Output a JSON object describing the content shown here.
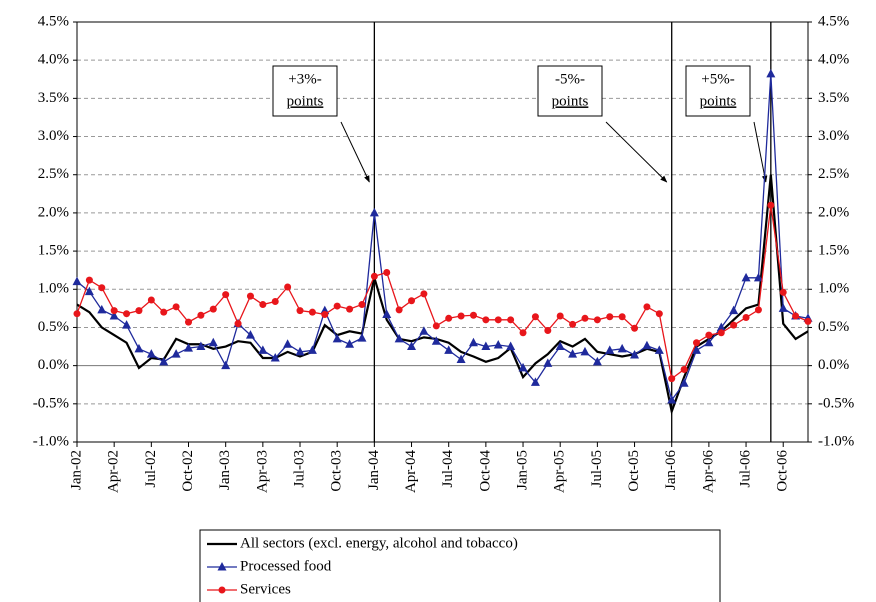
{
  "chart_data": {
    "type": "line",
    "categories": [
      "Jan-02",
      null,
      null,
      "Apr-02",
      null,
      null,
      "Jul-02",
      null,
      null,
      "Oct-02",
      null,
      null,
      "Jan-03",
      null,
      null,
      "Apr-03",
      null,
      null,
      "Jul-03",
      null,
      null,
      "Oct-03",
      null,
      null,
      "Jan-04",
      null,
      null,
      "Apr-04",
      null,
      null,
      "Jul-04",
      null,
      null,
      "Oct-04",
      null,
      null,
      "Jan-05",
      null,
      null,
      "Apr-05",
      null,
      null,
      "Jul-05",
      null,
      null,
      "Oct-05",
      null,
      null,
      "Jan-06",
      null,
      null,
      "Apr-06",
      null,
      null,
      "Jul-06",
      null,
      null,
      "Oct-06",
      null,
      null
    ],
    "series": [
      {
        "name": "All sectors (excl. energy, alcohol and tobacco)",
        "color": "#000000",
        "marker": null,
        "values": [
          0.8,
          0.7,
          0.5,
          0.4,
          0.3,
          -0.03,
          0.1,
          0.08,
          0.35,
          0.28,
          0.28,
          0.22,
          0.25,
          0.32,
          0.3,
          0.1,
          0.1,
          0.18,
          0.12,
          0.18,
          0.53,
          0.4,
          0.45,
          0.42,
          1.15,
          0.6,
          0.35,
          0.32,
          0.37,
          0.35,
          0.3,
          0.18,
          0.12,
          0.05,
          0.1,
          0.23,
          -0.15,
          0.03,
          0.15,
          0.32,
          0.25,
          0.35,
          0.18,
          0.15,
          0.12,
          0.15,
          0.22,
          0.18,
          -0.6,
          -0.15,
          0.25,
          0.35,
          0.45,
          0.6,
          0.75,
          0.8,
          2.5,
          0.55,
          0.35,
          0.45
        ]
      },
      {
        "name": "Processed food",
        "color": "#1f2a9c",
        "marker": "triangle",
        "values": [
          1.1,
          0.97,
          0.73,
          0.65,
          0.53,
          0.22,
          0.15,
          0.05,
          0.15,
          0.23,
          0.25,
          0.3,
          0.0,
          0.55,
          0.4,
          0.2,
          0.1,
          0.28,
          0.18,
          0.2,
          0.72,
          0.35,
          0.28,
          0.36,
          2.0,
          0.67,
          0.35,
          0.25,
          0.45,
          0.32,
          0.2,
          0.08,
          0.3,
          0.25,
          0.27,
          0.25,
          -0.03,
          -0.22,
          0.03,
          0.25,
          0.15,
          0.18,
          0.05,
          0.2,
          0.22,
          0.14,
          0.26,
          0.2,
          -0.45,
          -0.23,
          0.2,
          0.3,
          0.5,
          0.72,
          1.15,
          1.15,
          3.82,
          0.75,
          0.65,
          0.62
        ]
      },
      {
        "name": "Services",
        "color": "#e8161b",
        "marker": "circle",
        "values": [
          0.68,
          1.12,
          1.02,
          0.72,
          0.68,
          0.72,
          0.86,
          0.7,
          0.77,
          0.57,
          0.66,
          0.74,
          0.93,
          0.55,
          0.91,
          0.8,
          0.84,
          1.03,
          0.72,
          0.7,
          0.67,
          0.78,
          0.74,
          0.8,
          1.17,
          1.22,
          0.73,
          0.85,
          0.94,
          0.52,
          0.62,
          0.65,
          0.66,
          0.6,
          0.6,
          0.6,
          0.43,
          0.64,
          0.46,
          0.65,
          0.54,
          0.62,
          0.6,
          0.64,
          0.64,
          0.49,
          0.77,
          0.68,
          -0.17,
          -0.05,
          0.3,
          0.4,
          0.43,
          0.53,
          0.63,
          0.73,
          2.1,
          0.96,
          0.65,
          0.58
        ]
      }
    ],
    "ylim": [
      -1.0,
      4.5
    ],
    "yticks": [
      {
        "value": -1.0,
        "label": "-1.0%"
      },
      {
        "value": -0.5,
        "label": "-0.5%"
      },
      {
        "value": 0,
        "label": "0.0%"
      },
      {
        "value": 0.5,
        "label": "0.5%"
      },
      {
        "value": 1.0,
        "label": "1.0%"
      },
      {
        "value": 1.5,
        "label": "1.5%"
      },
      {
        "value": 2.0,
        "label": "2.0%"
      },
      {
        "value": 2.5,
        "label": "2.5%"
      },
      {
        "value": 3.0,
        "label": "3.0%"
      },
      {
        "value": 3.5,
        "label": "3.5%"
      },
      {
        "value": 4.0,
        "label": "4.0%"
      },
      {
        "value": 4.5,
        "label": "4.5%"
      }
    ],
    "y2lim": [
      -1.0,
      4.5
    ],
    "y2ticks": [
      {
        "value": -1.0,
        "label": "-1.0%"
      },
      {
        "value": -0.5,
        "label": "-0.5%"
      },
      {
        "value": 0,
        "label": "0.0%"
      },
      {
        "value": 0.5,
        "label": "0.5%"
      },
      {
        "value": 1.0,
        "label": "1.0%"
      },
      {
        "value": 1.5,
        "label": "1.5%"
      },
      {
        "value": 2.0,
        "label": "2.0%"
      },
      {
        "value": 2.5,
        "label": "2.5%"
      },
      {
        "value": 3.0,
        "label": "3.0%"
      },
      {
        "value": 3.5,
        "label": "3.5%"
      },
      {
        "value": 4.0,
        "label": "4.0%"
      },
      {
        "value": 4.5,
        "label": "4.5%"
      }
    ],
    "grid": true,
    "legend": "bottom",
    "annotations": [
      {
        "lines": [
          "+3%-",
          "points"
        ]
      },
      {
        "lines": [
          "-5%-",
          "points"
        ]
      },
      {
        "lines": [
          "+5%-",
          "points"
        ]
      }
    ]
  }
}
